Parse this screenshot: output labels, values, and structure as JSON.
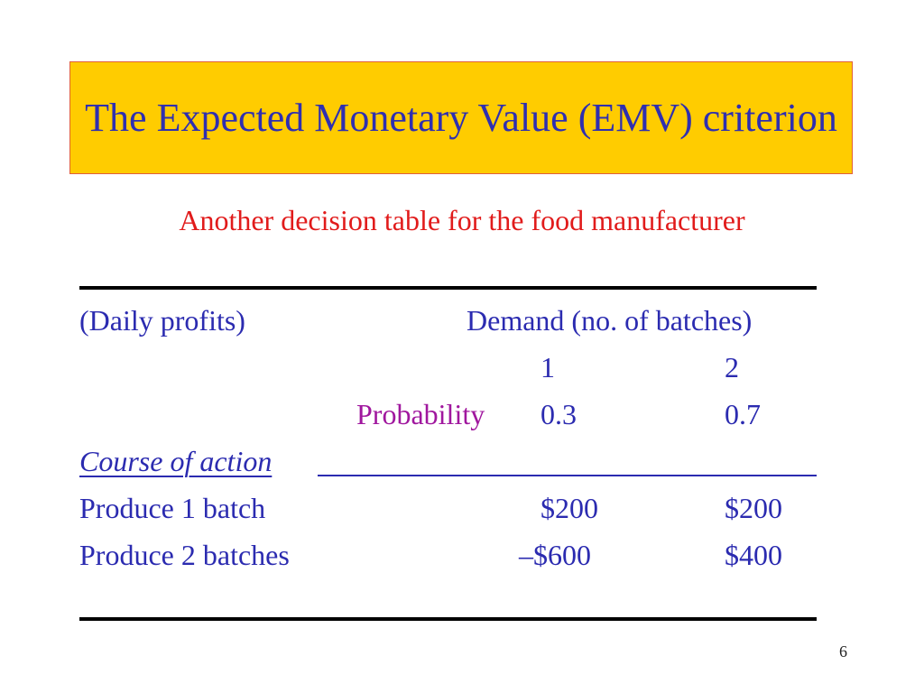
{
  "slide": {
    "title": "The Expected Monetary Value (EMV) criterion",
    "subtitle": "Another decision table for the food manufacturer",
    "page_number": "6"
  },
  "table": {
    "header_left": "(Daily profits)",
    "header_right": "Demand (no. of batches)",
    "demand_levels": [
      "1",
      "2"
    ],
    "probability_label": "Probability",
    "probabilities": [
      "0.3",
      "0.7"
    ],
    "action_header": "Course of action",
    "rows": [
      {
        "action": "Produce 1 batch",
        "values": [
          "$200",
          "$200"
        ]
      },
      {
        "action": "Produce 2 batches",
        "values": [
          "–$600",
          "$400"
        ]
      }
    ]
  },
  "colors": {
    "title_background": "#ffcc00",
    "title_border": "#e0603a",
    "text": "#2b2bb0",
    "subtitle": "#e11b1b",
    "probability_label": "#a0179e"
  }
}
